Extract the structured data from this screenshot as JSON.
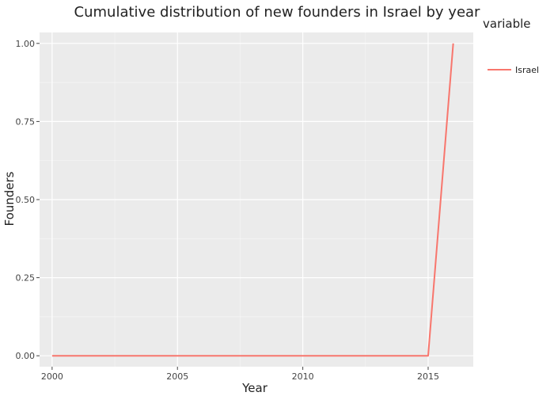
{
  "chart_data": {
    "type": "line",
    "title": "Cumulative distribution of new founders in Israel by year",
    "xlabel": "Year",
    "ylabel": "Founders",
    "xlim": [
      1999.5,
      2016.8
    ],
    "ylim": [
      -0.035,
      1.035
    ],
    "x_ticks": [
      2000,
      2005,
      2010,
      2015
    ],
    "x_tick_labels": [
      "2000",
      "2005",
      "2010",
      "2015"
    ],
    "y_ticks": [
      0,
      0.25,
      0.5,
      0.75,
      1
    ],
    "y_tick_labels": [
      "0.00",
      "0.25",
      "0.50",
      "0.75",
      "1.00"
    ],
    "grid": true,
    "legend": {
      "title": "variable",
      "position": "right"
    },
    "series": [
      {
        "name": "Israel",
        "color": "#f8766d",
        "x": [
          2000,
          2001,
          2002,
          2003,
          2004,
          2005,
          2006,
          2007,
          2008,
          2009,
          2010,
          2011,
          2012,
          2013,
          2014,
          2015,
          2016
        ],
        "y": [
          0,
          0,
          0,
          0,
          0,
          0,
          0,
          0,
          0,
          0,
          0,
          0,
          0,
          0,
          0,
          0,
          1
        ]
      }
    ],
    "colors": {
      "panel_bg": "#ebebeb",
      "grid": "#ffffff"
    }
  }
}
